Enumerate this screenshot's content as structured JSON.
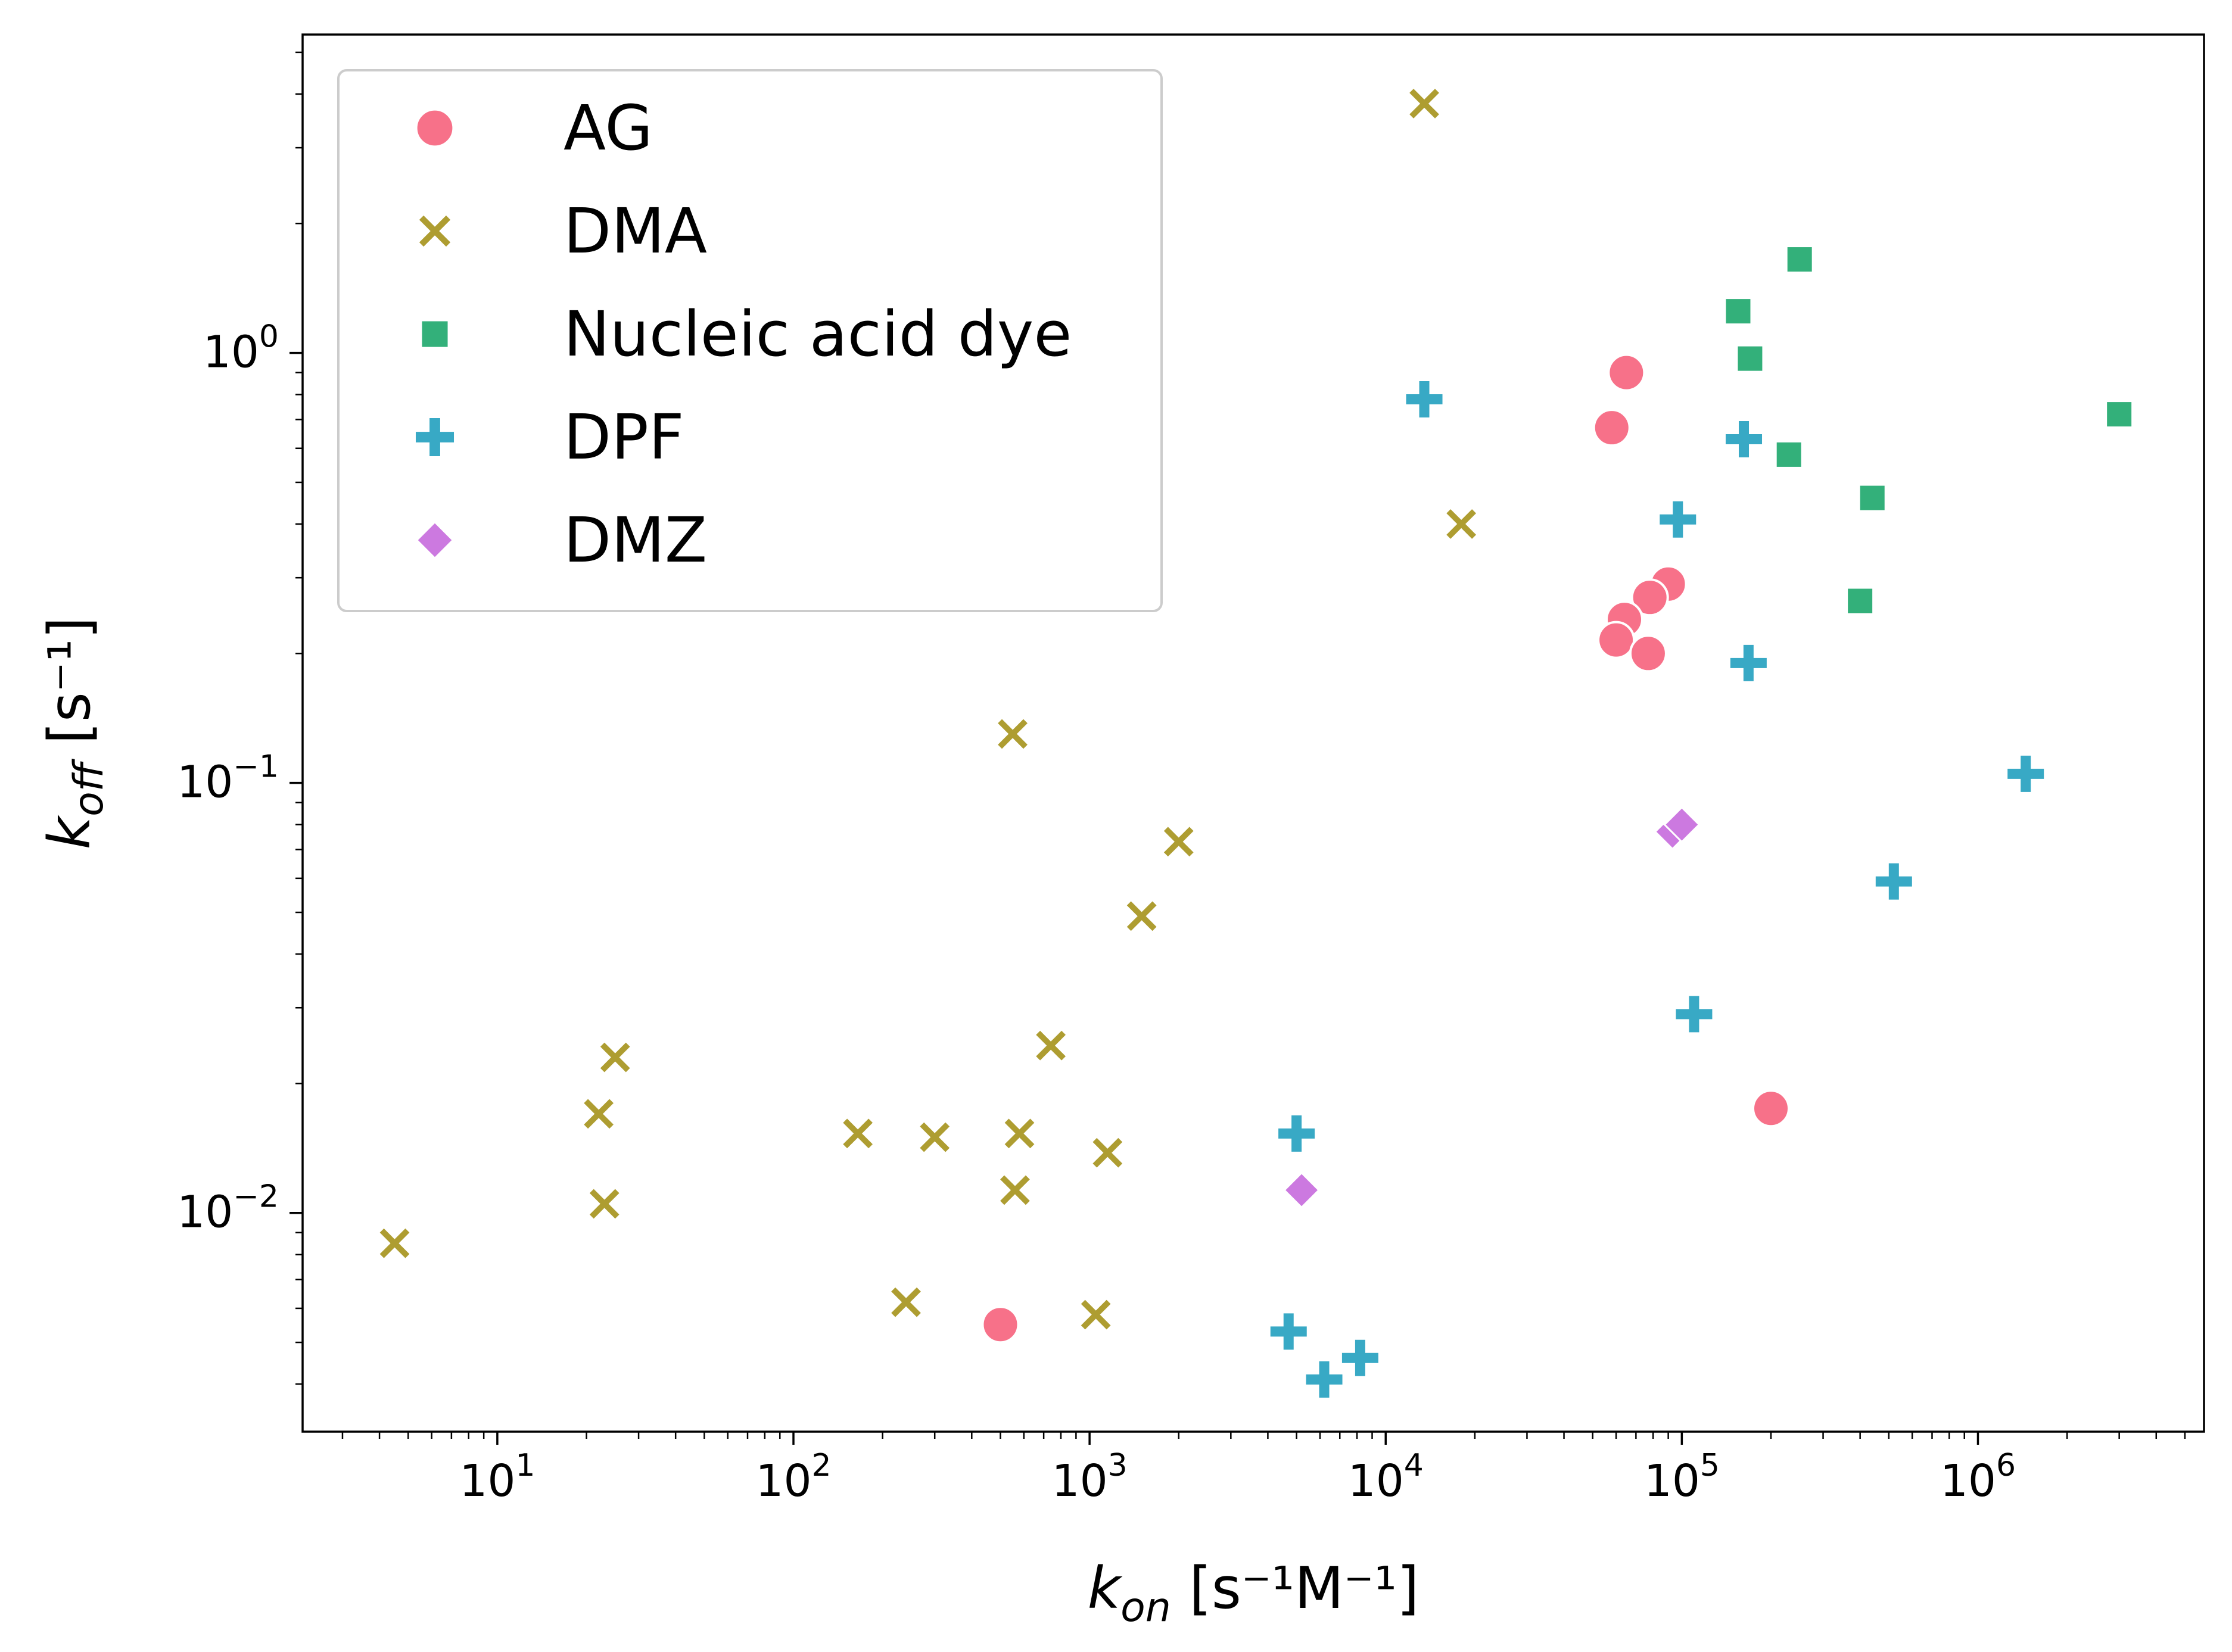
{
  "chart_data": {
    "type": "scatter",
    "xscale": "log",
    "yscale": "log",
    "xlim": [
      2.2,
      5800000
    ],
    "ylim": [
      0.0031,
      5.5
    ],
    "grid": false,
    "legend_position": "top-left",
    "xlabel": {
      "base": "k",
      "sub": "on",
      "units": "[s⁻¹M⁻¹]"
    },
    "ylabel": {
      "base": "k",
      "sub": "off",
      "units": "[s⁻¹]"
    },
    "x_major_ticks": [
      {
        "value": 10,
        "label": "10",
        "exp": "1"
      },
      {
        "value": 100,
        "label": "10",
        "exp": "2"
      },
      {
        "value": 1000,
        "label": "10",
        "exp": "3"
      },
      {
        "value": 10000,
        "label": "10",
        "exp": "4"
      },
      {
        "value": 100000,
        "label": "10",
        "exp": "5"
      },
      {
        "value": 1000000,
        "label": "10",
        "exp": "6"
      }
    ],
    "y_major_ticks": [
      {
        "value": 0.01,
        "label": "10",
        "exp": "−2"
      },
      {
        "value": 0.1,
        "label": "10",
        "exp": "−1"
      },
      {
        "value": 1,
        "label": "10",
        "exp": "0"
      }
    ],
    "series": [
      {
        "name": "AG",
        "marker": "circle",
        "color": "#f77189",
        "points": [
          [
            500,
            0.0055
          ],
          [
            200000,
            0.0175
          ],
          [
            65000,
            0.9
          ],
          [
            58000,
            0.67
          ],
          [
            90000,
            0.29
          ],
          [
            78000,
            0.27
          ],
          [
            64000,
            0.24
          ],
          [
            60000,
            0.215
          ],
          [
            77000,
            0.2
          ]
        ]
      },
      {
        "name": "DMA",
        "marker": "x",
        "color": "#ae9d31",
        "points": [
          [
            4.5,
            0.0085
          ],
          [
            22,
            0.017
          ],
          [
            25,
            0.023
          ],
          [
            23,
            0.0105
          ],
          [
            165,
            0.0153
          ],
          [
            300,
            0.015
          ],
          [
            240,
            0.0062
          ],
          [
            550,
            0.13
          ],
          [
            580,
            0.0153
          ],
          [
            560,
            0.0113
          ],
          [
            740,
            0.0245
          ],
          [
            1150,
            0.0138
          ],
          [
            1050,
            0.0058
          ],
          [
            1500,
            0.049
          ],
          [
            2000,
            0.073
          ],
          [
            13500,
            3.8
          ],
          [
            18000,
            0.4
          ]
        ]
      },
      {
        "name": "Nucleic acid dye",
        "marker": "square",
        "color": "#33b07a",
        "points": [
          [
            250000,
            1.65
          ],
          [
            155000,
            1.25
          ],
          [
            170000,
            0.97
          ],
          [
            3000000,
            0.72
          ],
          [
            230000,
            0.58
          ],
          [
            440000,
            0.46
          ],
          [
            400000,
            0.265
          ]
        ]
      },
      {
        "name": "DPF",
        "marker": "plus",
        "color": "#38a9c5",
        "points": [
          [
            13500,
            0.78
          ],
          [
            162000,
            0.63
          ],
          [
            97000,
            0.41
          ],
          [
            168000,
            0.19
          ],
          [
            1450000,
            0.105
          ],
          [
            520000,
            0.059
          ],
          [
            110000,
            0.029
          ],
          [
            5000,
            0.0153
          ],
          [
            4700,
            0.0053
          ],
          [
            6200,
            0.0041
          ],
          [
            8200,
            0.0046
          ]
        ]
      },
      {
        "name": "DMZ",
        "marker": "diamond",
        "color": "#cc79e0",
        "points": [
          [
            93000,
            0.077
          ],
          [
            100000,
            0.08
          ],
          [
            5200,
            0.0113
          ]
        ]
      }
    ]
  }
}
